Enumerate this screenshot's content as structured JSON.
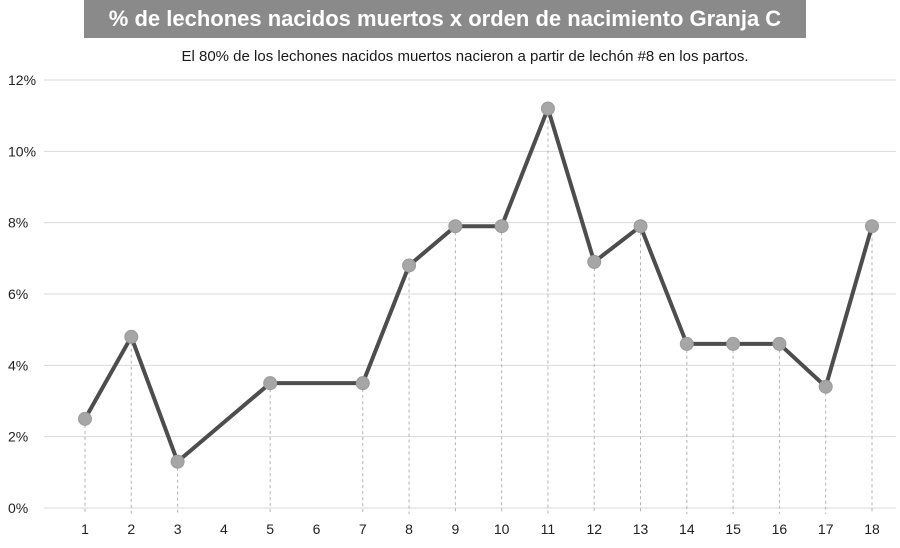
{
  "title": "% de lechones nacidos muertos x orden de nacimiento Granja C",
  "subtitle": "El 80% de los lechones nacidos muertos nacieron a partir de lechón #8 en los partos.",
  "colors": {
    "title_bg": "#8a8a8a",
    "line": "#4d4d4d",
    "marker": "#a6a6a6",
    "grid": "#d9d9d9",
    "dropline": "#b3b3b3"
  },
  "chart_data": {
    "type": "line",
    "title": "% de lechones nacidos muertos x orden de nacimiento Granja C",
    "subtitle": "El 80% de los lechones nacidos muertos nacieron a partir de lechón #8 en los partos.",
    "xlabel": "",
    "ylabel": "",
    "categories": [
      "1",
      "2",
      "3",
      "4",
      "5",
      "6",
      "7",
      "8",
      "9",
      "10",
      "11",
      "12",
      "13",
      "14",
      "15",
      "16",
      "17",
      "18"
    ],
    "x_positions": [
      1,
      2,
      3,
      4,
      5,
      6,
      7,
      8,
      9,
      10,
      11,
      12,
      13,
      14,
      15,
      16,
      17,
      18
    ],
    "points": [
      {
        "x": 1,
        "y": 2.5
      },
      {
        "x": 2,
        "y": 4.8
      },
      {
        "x": 3,
        "y": 1.3
      },
      {
        "x": 5,
        "y": 3.5
      },
      {
        "x": 7,
        "y": 3.5
      },
      {
        "x": 8,
        "y": 6.8
      },
      {
        "x": 9,
        "y": 7.9
      },
      {
        "x": 10,
        "y": 7.9
      },
      {
        "x": 11,
        "y": 11.2
      },
      {
        "x": 12,
        "y": 6.9
      },
      {
        "x": 13,
        "y": 7.9
      },
      {
        "x": 14,
        "y": 4.6
      },
      {
        "x": 15,
        "y": 4.6
      },
      {
        "x": 16,
        "y": 4.6
      },
      {
        "x": 17,
        "y": 3.4
      },
      {
        "x": 18,
        "y": 7.9
      }
    ],
    "y_ticks": [
      0,
      2,
      4,
      6,
      8,
      10,
      12
    ],
    "y_tick_labels": [
      "0%",
      "2%",
      "4%",
      "6%",
      "8%",
      "10%",
      "12%"
    ],
    "ylim": [
      0,
      12
    ],
    "grid": "horizontal",
    "legend": "none"
  }
}
